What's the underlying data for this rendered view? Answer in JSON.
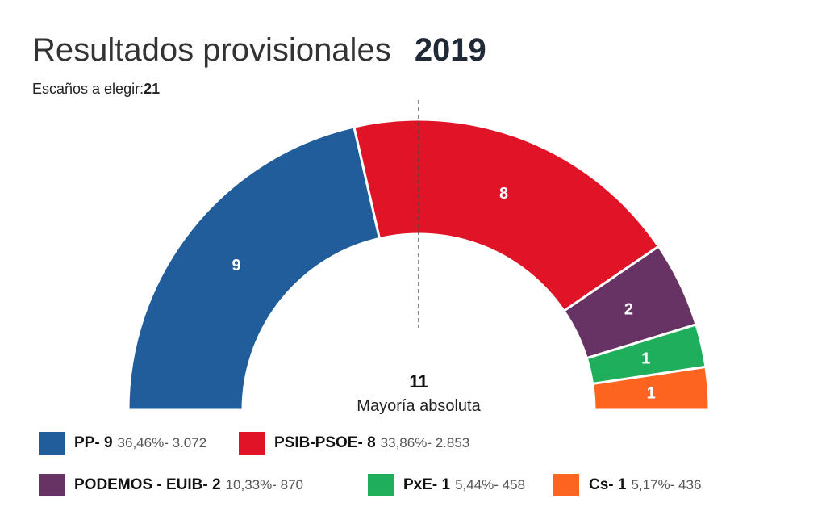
{
  "header": {
    "title": "Resultados provisionales",
    "year": "2019",
    "seats_label": "Escaños a elegir:",
    "seats_value": "21"
  },
  "center": {
    "majority_value": "11",
    "majority_label": "Mayoría absoluta"
  },
  "chart_data": {
    "type": "pie",
    "subtype": "parliament-semicircle",
    "total_seats": 21,
    "majority": 11,
    "series": [
      {
        "name": "PP",
        "legend_label": "PP- 9",
        "stats": "36,46%- 3.072",
        "seats": 9,
        "percent": 36.46,
        "votes": 3072,
        "color": "#225d9b"
      },
      {
        "name": "PSIB-PSOE",
        "legend_label": "PSIB-PSOE- 8",
        "stats": "33,86%- 2.853",
        "seats": 8,
        "percent": 33.86,
        "votes": 2853,
        "color": "#e01426"
      },
      {
        "name": "PODEMOS - EUIB",
        "legend_label": "PODEMOS - EUIB- 2",
        "stats": "10,33%- 870",
        "seats": 2,
        "percent": 10.33,
        "votes": 870,
        "color": "#673364"
      },
      {
        "name": "PxE",
        "legend_label": "PxE- 1",
        "stats": "5,44%- 458",
        "seats": 1,
        "percent": 5.44,
        "votes": 458,
        "color": "#1fae5c"
      },
      {
        "name": "Cs",
        "legend_label": "Cs- 1",
        "stats": "5,17%- 436",
        "seats": 1,
        "percent": 5.17,
        "votes": 436,
        "color": "#fc6420"
      }
    ]
  }
}
